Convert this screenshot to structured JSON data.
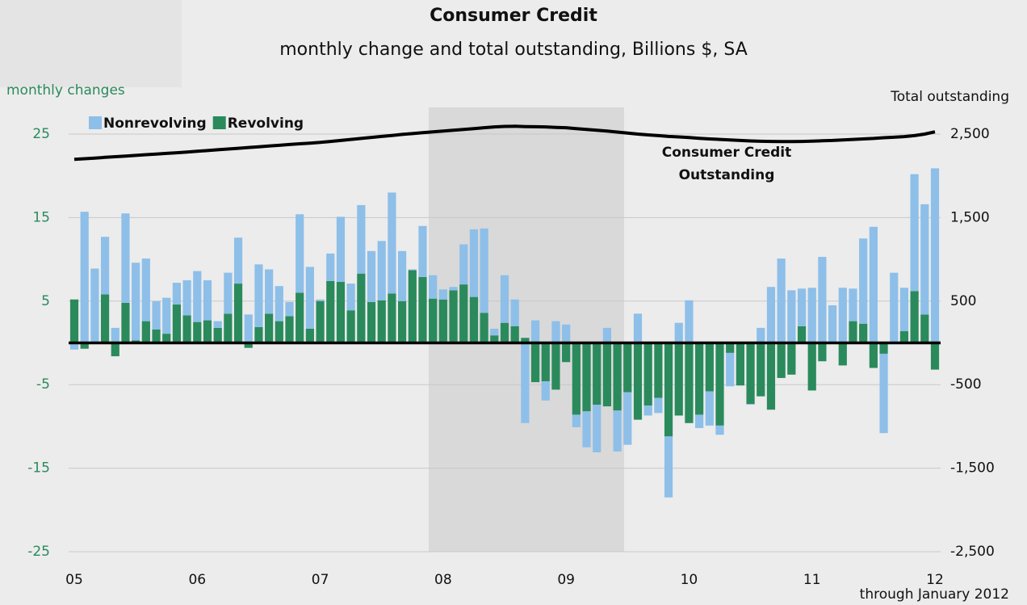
{
  "chart_data": {
    "type": "bar",
    "title": "Consumer Credit",
    "subtitle": "monthly change and total outstanding, Billions $, SA",
    "y_label": "monthly changes",
    "y2_label": "Total outstanding",
    "annotation": [
      "Consumer Credit",
      "Outstanding"
    ],
    "note": "through January 2012",
    "categories": [
      "05",
      null,
      null,
      null,
      null,
      null,
      null,
      null,
      null,
      null,
      null,
      null,
      "06",
      null,
      null,
      null,
      null,
      null,
      null,
      null,
      null,
      null,
      null,
      null,
      "07",
      null,
      null,
      null,
      null,
      null,
      null,
      null,
      null,
      null,
      null,
      null,
      "08",
      null,
      null,
      null,
      null,
      null,
      null,
      null,
      null,
      null,
      null,
      null,
      "09",
      null,
      null,
      null,
      null,
      null,
      null,
      null,
      null,
      null,
      null,
      null,
      "10",
      null,
      null,
      null,
      null,
      null,
      null,
      null,
      null,
      null,
      null,
      null,
      "11",
      null,
      null,
      null,
      null,
      null,
      null,
      null,
      null,
      null,
      null,
      null,
      "12"
    ],
    "series": [
      {
        "name": "Nonrevolving",
        "color": "#8dbfe9",
        "values": [
          -0.8,
          15.7,
          8.9,
          6.9,
          1.8,
          10.7,
          9.3,
          7.5,
          3.4,
          4.3,
          2.6,
          4.2,
          6.1,
          4.8,
          0.8,
          4.9,
          5.5,
          3.4,
          7.5,
          5.3,
          4.2,
          1.7,
          9.4,
          7.4,
          0.2,
          3.3,
          7.8,
          3.2,
          8.2,
          6.1,
          7.1,
          12.1,
          6.0,
          0.1,
          6.1,
          2.8,
          1.2,
          0.4,
          4.8,
          8.1,
          10.1,
          0.8,
          5.7,
          3.2,
          -9.6,
          2.7,
          -2.3,
          2.6,
          2.2,
          -1.5,
          -4.3,
          -5.7,
          1.8,
          -4.9,
          -6.3,
          3.5,
          -1.2,
          -1.8,
          -7.3,
          2.4,
          5.1,
          -1.6,
          -4.1,
          -1.1,
          -4.0,
          0,
          -0.1,
          1.8,
          6.7,
          10.1,
          6.3,
          4.5,
          6.6,
          10.3,
          4.5,
          6.6,
          3.9,
          10.2,
          13.9,
          -9.5,
          8.4,
          5.2,
          14.0,
          13.2,
          20.9
        ]
      },
      {
        "name": "Revolving",
        "color": "#2a8a5c",
        "values": [
          5.2,
          -0.7,
          0,
          5.8,
          -1.6,
          4.8,
          0.3,
          2.6,
          1.6,
          1.1,
          4.6,
          3.3,
          2.5,
          2.7,
          1.8,
          3.5,
          7.1,
          -0.6,
          1.9,
          3.5,
          2.6,
          3.2,
          6.0,
          1.7,
          5.0,
          7.4,
          7.3,
          3.9,
          8.3,
          4.9,
          5.1,
          5.9,
          5.0,
          8.7,
          7.9,
          5.3,
          5.2,
          6.3,
          7.0,
          5.5,
          3.6,
          0.9,
          2.4,
          2.0,
          0.6,
          -4.7,
          -4.6,
          -5.6,
          -2.3,
          -8.6,
          -8.2,
          -7.4,
          -7.6,
          -8.1,
          -5.9,
          -9.2,
          -7.5,
          -6.6,
          -11.2,
          -8.7,
          -9.6,
          -8.6,
          -5.8,
          -9.9,
          -1.2,
          -5.1,
          -7.3,
          -6.4,
          -8.0,
          -4.2,
          -3.8,
          2.0,
          -5.7,
          -2.2,
          0,
          -2.7,
          2.6,
          2.3,
          -3.0,
          -1.3,
          0,
          1.4,
          6.2,
          3.4,
          -3.2
        ]
      },
      {
        "name": "Consumer Credit Outstanding",
        "type": "line",
        "axis": "y2",
        "color": "#000000",
        "values": [
          2197,
          2205,
          2213,
          2221,
          2229,
          2237,
          2245,
          2253,
          2261,
          2269,
          2277,
          2285,
          2294,
          2303,
          2312,
          2321,
          2330,
          2339,
          2348,
          2357,
          2366,
          2375,
          2384,
          2392,
          2400,
          2412,
          2424,
          2436,
          2448,
          2460,
          2472,
          2484,
          2496,
          2506,
          2516,
          2526,
          2536,
          2546,
          2556,
          2566,
          2576,
          2586,
          2592,
          2594,
          2590,
          2588,
          2586,
          2580,
          2576,
          2566,
          2556,
          2546,
          2536,
          2524,
          2512,
          2500,
          2490,
          2482,
          2472,
          2466,
          2458,
          2450,
          2442,
          2436,
          2430,
          2424,
          2418,
          2414,
          2412,
          2410,
          2410,
          2412,
          2416,
          2420,
          2424,
          2430,
          2436,
          2442,
          2448,
          2456,
          2462,
          2470,
          2482,
          2500,
          2527
        ]
      }
    ],
    "ylim": [
      -25,
      25
    ],
    "yticks": [
      -25,
      -15,
      -5,
      5,
      15,
      25
    ],
    "y2lim": [
      -2500,
      2500
    ],
    "y2ticks": [
      {
        "value": -2500,
        "label": "-2,500"
      },
      {
        "value": -1500,
        "label": "-1,500"
      },
      {
        "value": -500,
        "label": "-500"
      },
      {
        "value": 500,
        "label": "500"
      },
      {
        "value": 1500,
        "label": "1,500"
      },
      {
        "value": 2500,
        "label": "2,500"
      }
    ],
    "grid": true,
    "legend": "top-left"
  }
}
